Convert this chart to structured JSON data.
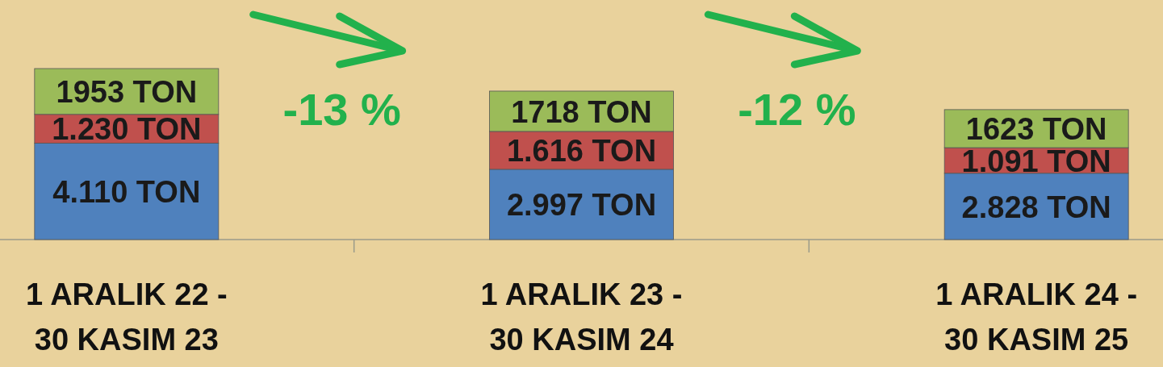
{
  "chart_data": {
    "type": "bar",
    "stacked": true,
    "data_labels": true,
    "categories": [
      "1 ARALIK 22 -\n30 KASIM 23",
      "1 ARALIK 23 -\n30 KASIM 24",
      "1 ARALIK 24 -\n30 KASIM 25"
    ],
    "series": [
      {
        "color": "#4f81bd",
        "values": [
          4110,
          2997,
          2828
        ],
        "value_labels": [
          "4.110 TON",
          "2.997 TON",
          "2.828 TON"
        ]
      },
      {
        "color": "#c0504d",
        "values": [
          1230,
          1616,
          1091
        ],
        "value_labels": [
          "1.230 TON",
          "1.616 TON",
          "1.091 TON"
        ]
      },
      {
        "color": "#9bbb59",
        "values": [
          1953,
          1718,
          1623
        ],
        "value_labels": [
          "1953 TON",
          "1718 TON",
          "1623 TON"
        ]
      }
    ],
    "annotations": [
      "-13 %",
      "-12 %"
    ]
  }
}
